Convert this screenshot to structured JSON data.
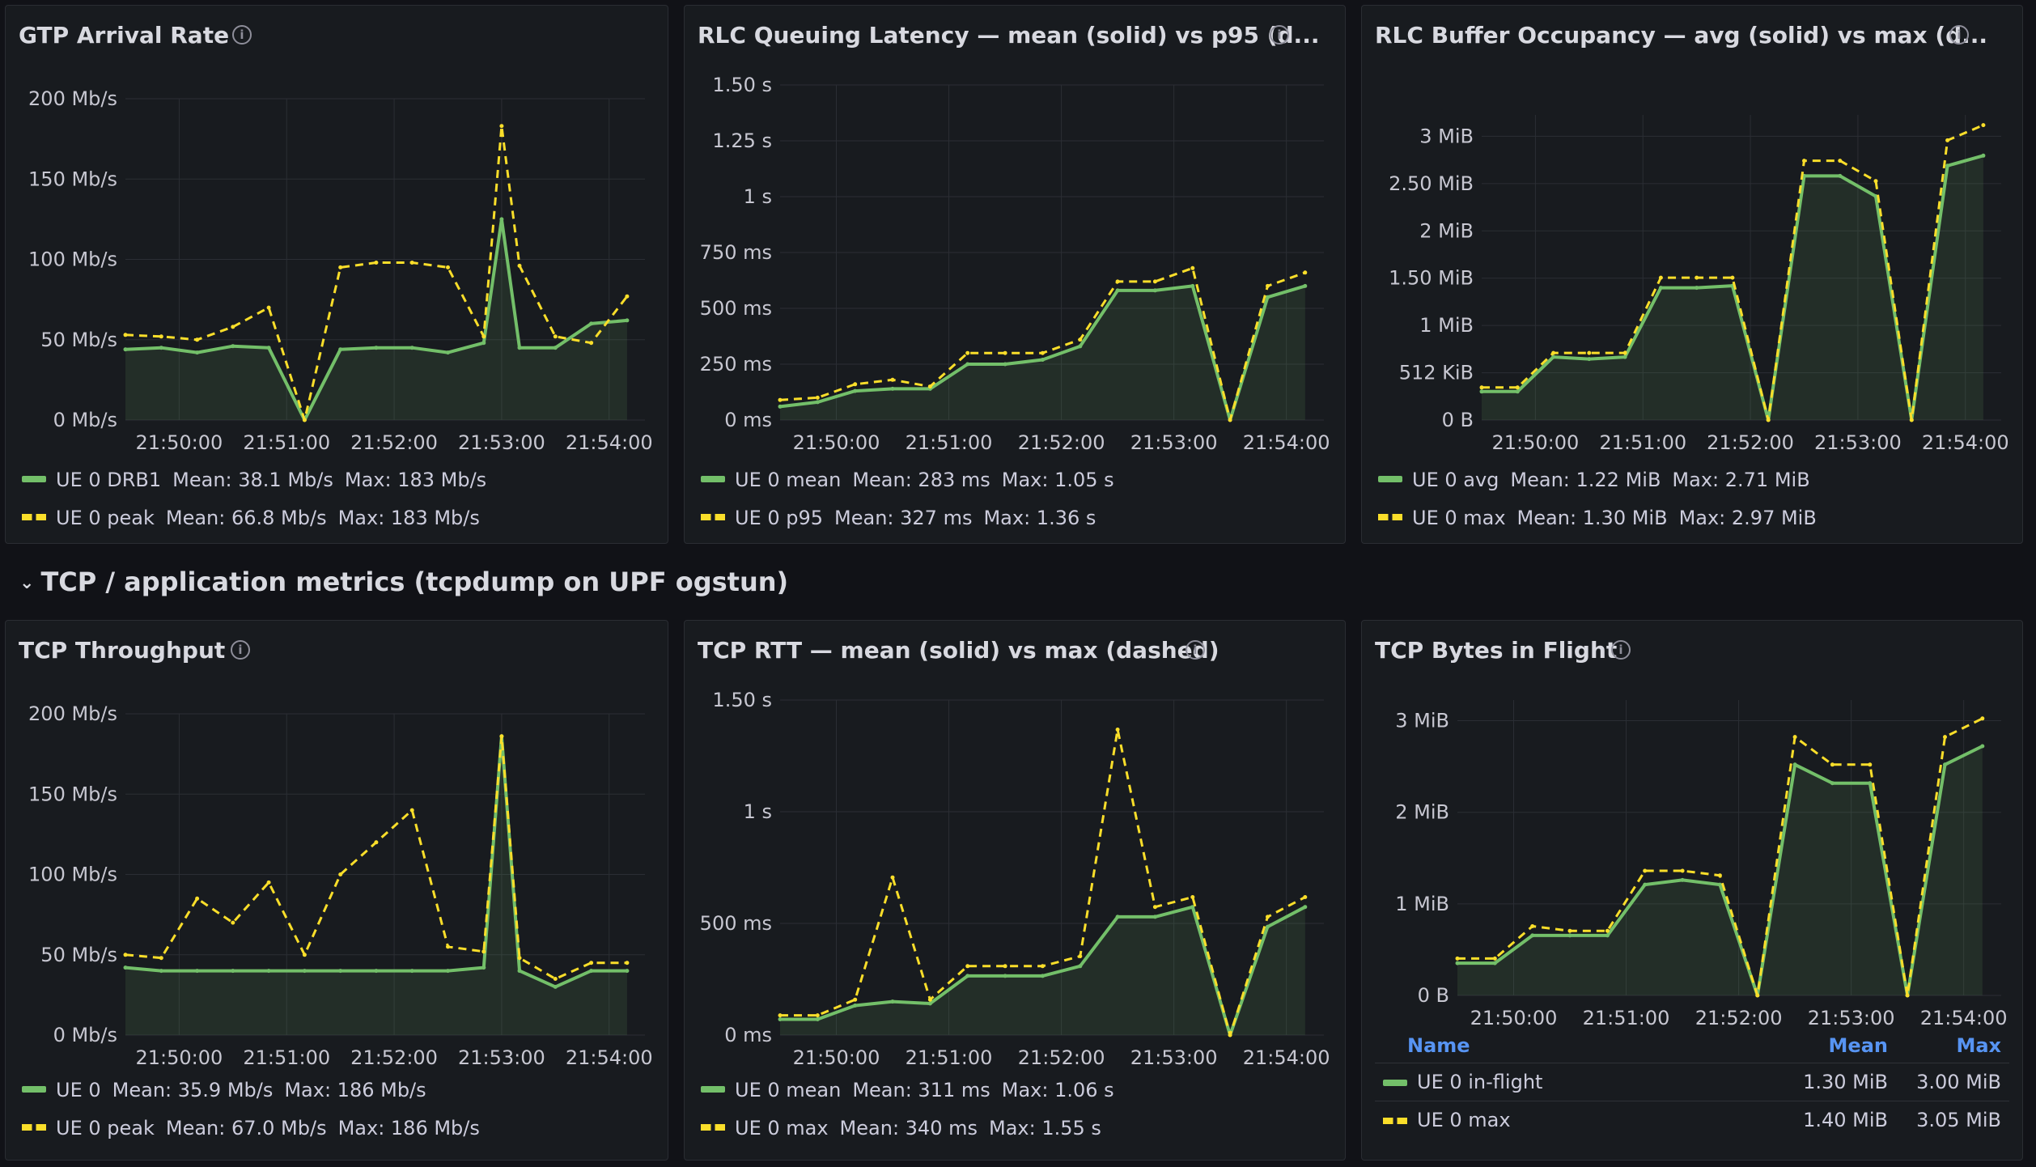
{
  "colors": {
    "green": "#73bf69",
    "yellow": "#fade2a",
    "bg": "#111217",
    "panel": "#181b1f",
    "grid": "#2b2e34"
  },
  "row_header": {
    "label": "TCP / application metrics (tcpdump on UPF ogstun)"
  },
  "panels": [
    {
      "id": "gtp",
      "title": "GTP Arrival Rate",
      "info_icon": "info-icon",
      "x_ticks": [
        "21:50:00",
        "21:51:00",
        "21:52:00",
        "21:53:00",
        "21:54:00"
      ],
      "y_ticks": [
        "0 Mb/s",
        "50 Mb/s",
        "100 Mb/s",
        "150 Mb/s",
        "200 Mb/s"
      ],
      "legend": [
        {
          "style": "solid",
          "name": "UE 0 DRB1",
          "mean": "Mean: 38.1 Mb/s",
          "max": "Max: 183 Mb/s"
        },
        {
          "style": "dash",
          "name": "UE 0 peak",
          "mean": "Mean: 66.8 Mb/s",
          "max": "Max: 183 Mb/s"
        }
      ]
    },
    {
      "id": "rlclat",
      "title": "RLC Queuing Latency — mean (solid) vs p95 (d...",
      "info_icon": "info-icon",
      "x_ticks": [
        "21:50:00",
        "21:51:00",
        "21:52:00",
        "21:53:00",
        "21:54:00"
      ],
      "y_ticks": [
        "0 ms",
        "250 ms",
        "500 ms",
        "750 ms",
        "1 s",
        "1.25 s",
        "1.50 s"
      ],
      "legend": [
        {
          "style": "solid",
          "name": "UE 0 mean",
          "mean": "Mean: 283 ms",
          "max": "Max: 1.05 s"
        },
        {
          "style": "dash",
          "name": "UE 0 p95",
          "mean": "Mean: 327 ms",
          "max": "Max: 1.36 s"
        }
      ]
    },
    {
      "id": "rlcbuf",
      "title": "RLC Buffer Occupancy — avg (solid) vs max (d...",
      "info_icon": "info-icon",
      "x_ticks": [
        "21:50:00",
        "21:51:00",
        "21:52:00",
        "21:53:00",
        "21:54:00"
      ],
      "y_ticks": [
        "0 B",
        "512 KiB",
        "1 MiB",
        "1.50 MiB",
        "2 MiB",
        "2.50 MiB",
        "3 MiB"
      ],
      "legend": [
        {
          "style": "solid",
          "name": "UE 0 avg",
          "mean": "Mean: 1.22 MiB",
          "max": "Max: 2.71 MiB"
        },
        {
          "style": "dash",
          "name": "UE 0 max",
          "mean": "Mean: 1.30 MiB",
          "max": "Max: 2.97 MiB"
        }
      ]
    },
    {
      "id": "tcpthr",
      "title": "TCP Throughput",
      "info_icon": "info-icon",
      "x_ticks": [
        "21:50:00",
        "21:51:00",
        "21:52:00",
        "21:53:00",
        "21:54:00"
      ],
      "y_ticks": [
        "0 Mb/s",
        "50 Mb/s",
        "100 Mb/s",
        "150 Mb/s",
        "200 Mb/s"
      ],
      "legend": [
        {
          "style": "solid",
          "name": "UE 0",
          "mean": "Mean: 35.9 Mb/s",
          "max": "Max: 186 Mb/s"
        },
        {
          "style": "dash",
          "name": "UE 0 peak",
          "mean": "Mean: 67.0 Mb/s",
          "max": "Max: 186 Mb/s"
        }
      ]
    },
    {
      "id": "tcprtt",
      "title": "TCP RTT — mean (solid) vs max (dashed)",
      "info_icon": "info-icon",
      "x_ticks": [
        "21:50:00",
        "21:51:00",
        "21:52:00",
        "21:53:00",
        "21:54:00"
      ],
      "y_ticks": [
        "0 ms",
        "500 ms",
        "1 s",
        "1.50 s"
      ],
      "legend": [
        {
          "style": "solid",
          "name": "UE 0 mean",
          "mean": "Mean: 311 ms",
          "max": "Max: 1.06 s"
        },
        {
          "style": "dash",
          "name": "UE 0 max",
          "mean": "Mean: 340 ms",
          "max": "Max: 1.55 s"
        }
      ]
    },
    {
      "id": "tcpbif",
      "title": "TCP Bytes in Flight",
      "info_icon": "info-icon",
      "x_ticks": [
        "21:50:00",
        "21:51:00",
        "21:52:00",
        "21:53:00",
        "21:54:00"
      ],
      "y_ticks": [
        "0 B",
        "1 MiB",
        "2 MiB",
        "3 MiB"
      ],
      "legend_table": {
        "headers": {
          "name": "Name",
          "mean": "Mean",
          "max": "Max"
        },
        "rows": [
          {
            "style": "solid",
            "name": "UE 0 in-flight",
            "mean": "1.30 MiB",
            "max": "3.00 MiB"
          },
          {
            "style": "dash",
            "name": "UE 0 max",
            "mean": "1.40 MiB",
            "max": "3.05 MiB"
          }
        ]
      }
    }
  ],
  "chart_data": [
    {
      "type": "line",
      "title": "GTP Arrival Rate",
      "ylim": [
        0,
        200
      ],
      "y_unit": "Mb/s",
      "x": [
        "21:49:30",
        "21:49:50",
        "21:50:10",
        "21:50:30",
        "21:50:50",
        "21:51:10",
        "21:51:30",
        "21:51:50",
        "21:52:10",
        "21:52:30",
        "21:52:50",
        "21:53:00",
        "21:53:10",
        "21:53:30",
        "21:53:50",
        "21:54:10"
      ],
      "series": [
        {
          "name": "UE 0 DRB1",
          "values": [
            44,
            45,
            42,
            46,
            45,
            0,
            44,
            45,
            45,
            42,
            48,
            125,
            45,
            45,
            60,
            62
          ]
        },
        {
          "name": "UE 0 peak",
          "values": [
            53,
            52,
            50,
            58,
            70,
            0,
            95,
            98,
            98,
            95,
            52,
            183,
            96,
            52,
            48,
            77
          ]
        }
      ]
    },
    {
      "type": "line",
      "title": "RLC Queuing Latency — mean (solid) vs p95 (d...",
      "ylim": [
        0,
        1.5
      ],
      "y_unit": "s",
      "x": [
        "21:49:30",
        "21:49:50",
        "21:50:10",
        "21:50:30",
        "21:50:50",
        "21:51:10",
        "21:51:30",
        "21:51:50",
        "21:52:10",
        "21:52:30",
        "21:52:50",
        "21:53:10",
        "21:53:30",
        "21:53:50",
        "21:54:10"
      ],
      "series": [
        {
          "name": "UE 0 mean",
          "values": [
            0.06,
            0.08,
            0.13,
            0.14,
            0.14,
            0.25,
            0.25,
            0.27,
            0.33,
            0.58,
            0.58,
            0.6,
            0.0,
            0.55,
            0.6
          ]
        },
        {
          "name": "UE 0 p95",
          "values": [
            0.09,
            0.1,
            0.16,
            0.18,
            0.15,
            0.3,
            0.3,
            0.3,
            0.36,
            0.62,
            0.62,
            0.68,
            0.0,
            0.6,
            0.66
          ]
        }
      ]
    },
    {
      "type": "area",
      "title": "RLC Buffer Occupancy — avg (solid) vs max (d...",
      "ylim": [
        0,
        3
      ],
      "y_unit": "MiB",
      "x": [
        "21:49:30",
        "21:49:50",
        "21:50:10",
        "21:50:30",
        "21:50:50",
        "21:51:10",
        "21:51:30",
        "21:51:50",
        "21:52:10",
        "21:52:30",
        "21:52:50",
        "21:53:10",
        "21:53:30",
        "21:53:50",
        "21:54:10"
      ],
      "series": [
        {
          "name": "UE 0 avg",
          "values": [
            0.28,
            0.28,
            0.62,
            0.6,
            0.62,
            1.3,
            1.3,
            1.32,
            0.0,
            2.4,
            2.4,
            2.2,
            0.0,
            2.5,
            2.6
          ]
        },
        {
          "name": "UE 0 max",
          "values": [
            0.32,
            0.32,
            0.66,
            0.66,
            0.66,
            1.4,
            1.4,
            1.4,
            0.0,
            2.55,
            2.55,
            2.35,
            0.0,
            2.75,
            2.9
          ]
        }
      ]
    },
    {
      "type": "line",
      "title": "TCP Throughput",
      "ylim": [
        0,
        200
      ],
      "y_unit": "Mb/s",
      "x": [
        "21:49:30",
        "21:49:50",
        "21:50:10",
        "21:50:30",
        "21:50:50",
        "21:51:10",
        "21:51:30",
        "21:51:50",
        "21:52:10",
        "21:52:30",
        "21:52:50",
        "21:53:00",
        "21:53:10",
        "21:53:30",
        "21:53:50",
        "21:54:10"
      ],
      "series": [
        {
          "name": "UE 0",
          "values": [
            42,
            40,
            40,
            40,
            40,
            40,
            40,
            40,
            40,
            40,
            42,
            186,
            40,
            30,
            40,
            40
          ]
        },
        {
          "name": "UE 0 peak",
          "values": [
            50,
            48,
            85,
            70,
            95,
            50,
            100,
            120,
            140,
            55,
            52,
            186,
            48,
            35,
            45,
            45
          ]
        }
      ]
    },
    {
      "type": "line",
      "title": "TCP RTT — mean (solid) vs max (dashed)",
      "ylim": [
        0,
        1.7
      ],
      "y_unit": "s",
      "x": [
        "21:49:30",
        "21:49:50",
        "21:50:10",
        "21:50:30",
        "21:50:50",
        "21:51:10",
        "21:51:30",
        "21:51:50",
        "21:52:10",
        "21:52:30",
        "21:52:50",
        "21:53:10",
        "21:53:30",
        "21:53:50",
        "21:54:10"
      ],
      "series": [
        {
          "name": "UE 0 mean",
          "values": [
            0.08,
            0.08,
            0.15,
            0.17,
            0.16,
            0.3,
            0.3,
            0.3,
            0.35,
            0.6,
            0.6,
            0.65,
            0.0,
            0.55,
            0.65
          ]
        },
        {
          "name": "UE 0 max",
          "values": [
            0.1,
            0.1,
            0.18,
            0.8,
            0.18,
            0.35,
            0.35,
            0.35,
            0.4,
            1.55,
            0.65,
            0.7,
            0.0,
            0.6,
            0.7
          ]
        }
      ]
    },
    {
      "type": "area",
      "title": "TCP Bytes in Flight",
      "ylim": [
        0,
        3.2
      ],
      "y_unit": "MiB",
      "x": [
        "21:49:30",
        "21:49:50",
        "21:50:10",
        "21:50:30",
        "21:50:50",
        "21:51:10",
        "21:51:30",
        "21:51:50",
        "21:52:10",
        "21:52:30",
        "21:52:50",
        "21:53:10",
        "21:53:30",
        "21:53:50",
        "21:54:10"
      ],
      "series": [
        {
          "name": "UE 0 in-flight",
          "values": [
            0.35,
            0.35,
            0.65,
            0.65,
            0.65,
            1.2,
            1.25,
            1.2,
            0.0,
            2.5,
            2.3,
            2.3,
            0.0,
            2.5,
            2.7
          ]
        },
        {
          "name": "UE 0 max",
          "values": [
            0.4,
            0.4,
            0.75,
            0.7,
            0.7,
            1.35,
            1.35,
            1.3,
            0.0,
            2.8,
            2.5,
            2.5,
            0.0,
            2.8,
            3.0
          ]
        }
      ]
    }
  ]
}
